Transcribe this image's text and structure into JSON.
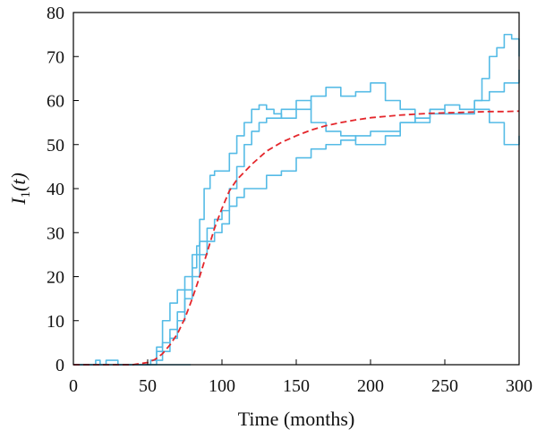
{
  "chart_data": {
    "type": "line",
    "title": "",
    "xlabel": "Time (months)",
    "ylabel": {
      "symbol": "I",
      "subscript": "1",
      "argument": "(t)"
    },
    "xlim": [
      0,
      300
    ],
    "ylim": [
      0,
      80
    ],
    "x_ticks": [
      0,
      50,
      100,
      150,
      200,
      250,
      300
    ],
    "y_ticks": [
      0,
      10,
      20,
      30,
      40,
      50,
      60,
      70,
      80
    ],
    "grid": false,
    "legend": "none",
    "colors": {
      "stochastic": "#55bbe6",
      "deterministic": "#e4262b",
      "axis": "#000000"
    },
    "series": [
      {
        "style": "dashed",
        "x": [
          0,
          40,
          50,
          55,
          60,
          65,
          70,
          75,
          80,
          85,
          90,
          95,
          100,
          105,
          110,
          120,
          130,
          140,
          150,
          160,
          170,
          180,
          190,
          200,
          210,
          220,
          230,
          240,
          250,
          260,
          270,
          280,
          290,
          300
        ],
        "y": [
          0,
          0,
          0.5,
          1.2,
          2.5,
          4.5,
          7,
          10.5,
          15,
          20,
          25.5,
          31,
          35.5,
          39.5,
          42,
          45.5,
          48.5,
          50.5,
          52,
          53.3,
          54.3,
          55,
          55.6,
          56.1,
          56.4,
          56.7,
          56.9,
          57.1,
          57.2,
          57.3,
          57.4,
          57.5,
          57.5,
          57.6
        ]
      },
      {
        "style": "step",
        "x": [
          0,
          15,
          18,
          22,
          30,
          40,
          48,
          52,
          56,
          60,
          65,
          70,
          75,
          80,
          83,
          85,
          88,
          92,
          95,
          100,
          105,
          110,
          115,
          120,
          125,
          130,
          135,
          140,
          150,
          160,
          170,
          180,
          190,
          200,
          210,
          220,
          230,
          240,
          250,
          260,
          270,
          275,
          280,
          285,
          290,
          295,
          300
        ],
        "y": [
          0,
          1,
          0,
          1,
          0,
          0,
          0,
          1,
          3,
          5,
          8,
          12,
          17,
          22,
          27,
          33,
          40,
          43,
          44,
          44,
          48,
          52,
          55,
          58,
          59,
          58,
          57,
          56,
          58,
          61,
          63,
          61,
          62,
          64,
          60,
          58,
          55,
          58,
          57,
          57,
          60,
          65,
          70,
          72,
          75,
          74,
          70
        ]
      },
      {
        "style": "step",
        "x": [
          0,
          45,
          52,
          56,
          60,
          65,
          70,
          75,
          80,
          85,
          90,
          95,
          100,
          105,
          110,
          115,
          120,
          125,
          130,
          140,
          150,
          160,
          170,
          180,
          190,
          200,
          210,
          220,
          230,
          240,
          250,
          260,
          270,
          280,
          290,
          300
        ],
        "y": [
          0,
          0,
          1,
          4,
          10,
          14,
          17,
          20,
          25,
          28,
          31,
          33,
          35,
          40,
          45,
          50,
          53,
          55,
          56,
          58,
          60,
          55,
          53,
          52,
          50,
          50,
          52,
          55,
          56,
          57,
          57,
          57,
          58,
          55,
          50,
          52
        ]
      },
      {
        "style": "step",
        "x": [
          0,
          52,
          56,
          60,
          65,
          70,
          75,
          80,
          85,
          90,
          95,
          100,
          105,
          110,
          115,
          120,
          130,
          140,
          150,
          160,
          170,
          180,
          190,
          200,
          210,
          220,
          230,
          240,
          250,
          260,
          270,
          280,
          290,
          300
        ],
        "y": [
          0,
          0,
          1,
          3,
          6,
          10,
          15,
          20,
          25,
          28,
          30,
          32,
          36,
          38,
          40,
          40,
          43,
          44,
          47,
          49,
          50,
          51,
          52,
          53,
          53,
          55,
          56,
          58,
          59,
          58,
          60,
          62,
          64,
          67
        ]
      },
      {
        "style": "step",
        "x": [
          52,
          79
        ],
        "y": [
          0,
          0
        ]
      }
    ]
  }
}
